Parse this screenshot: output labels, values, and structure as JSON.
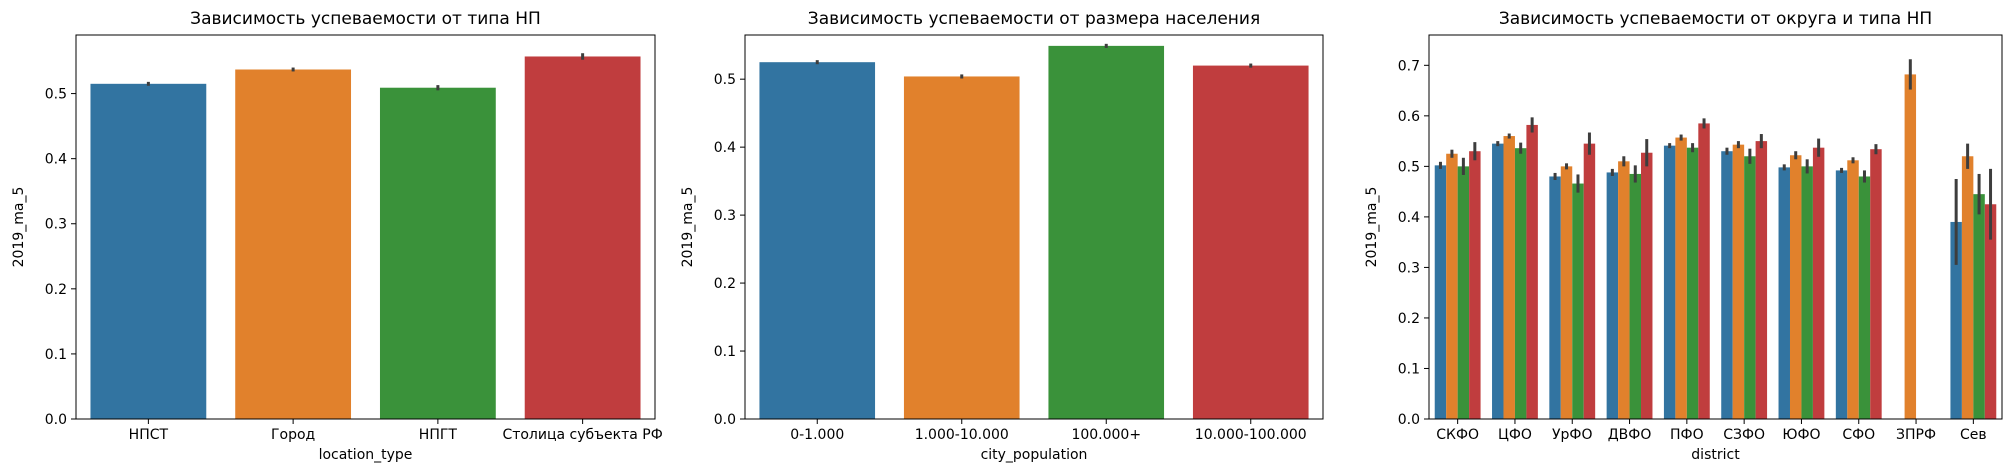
{
  "chart_data": [
    {
      "type": "bar",
      "title": "Зависимость успеваемости от типа НП",
      "xlabel": "location_type",
      "ylabel": "2019_ma_5",
      "ylim": [
        0,
        0.59
      ],
      "yticks": [
        "0.0",
        "0.1",
        "0.2",
        "0.3",
        "0.4",
        "0.5"
      ],
      "grid": false,
      "categories": [
        "НПСТ",
        "Город",
        "НПГТ",
        "Столица субъекта РФ"
      ],
      "values": [
        0.515,
        0.537,
        0.509,
        0.557
      ],
      "errors": [
        0.003,
        0.003,
        0.004,
        0.005
      ],
      "colors": [
        "#3274a1",
        "#e1812c",
        "#3a923a",
        "#c03d3e"
      ]
    },
    {
      "type": "bar",
      "title": "Зависимость успеваемости от размера населения",
      "xlabel": "city_population",
      "ylabel": "2019_ma_5",
      "ylim": [
        0,
        0.565
      ],
      "yticks": [
        "0.0",
        "0.1",
        "0.2",
        "0.3",
        "0.4",
        "0.5"
      ],
      "grid": false,
      "categories": [
        "0-1.000",
        "1.000-10.000",
        "100.000+",
        "10.000-100.000"
      ],
      "values": [
        0.525,
        0.504,
        0.549,
        0.52
      ],
      "errors": [
        0.003,
        0.003,
        0.003,
        0.003
      ],
      "colors": [
        "#3274a1",
        "#e1812c",
        "#3a923a",
        "#c03d3e"
      ]
    },
    {
      "type": "bar",
      "title": "Зависимость успеваемости от округа и типа НП",
      "xlabel": "district",
      "ylabel": "2019_ma_5",
      "ylim": [
        0,
        0.76
      ],
      "yticks": [
        "0.0",
        "0.1",
        "0.2",
        "0.3",
        "0.4",
        "0.5",
        "0.6",
        "0.7"
      ],
      "grid": false,
      "categories": [
        "СКФО",
        "ЦФО",
        "УрФО",
        "ДВФО",
        "ПФО",
        "СЗФО",
        "ЮФО",
        "СФО",
        "ЗПРФ",
        "Сев"
      ],
      "colors": [
        "#3274a1",
        "#e1812c",
        "#3a923a",
        "#c03d3e"
      ],
      "series": [
        {
          "values": [
            0.502,
            0.545,
            0.48,
            0.488,
            0.541,
            0.53,
            0.498,
            0.492,
            null,
            0.39
          ],
          "errors": [
            0.007,
            0.005,
            0.007,
            0.007,
            0.005,
            0.007,
            0.006,
            0.005,
            null,
            0.085
          ]
        },
        {
          "values": [
            0.525,
            0.56,
            0.5,
            0.51,
            0.557,
            0.543,
            0.522,
            0.512,
            0.682,
            0.52
          ],
          "errors": [
            0.008,
            0.005,
            0.006,
            0.01,
            0.006,
            0.007,
            0.008,
            0.006,
            0.03,
            0.025
          ]
        },
        {
          "values": [
            0.5,
            0.536,
            0.466,
            0.485,
            0.537,
            0.52,
            0.5,
            0.48,
            null,
            0.445
          ],
          "errors": [
            0.017,
            0.011,
            0.018,
            0.017,
            0.009,
            0.015,
            0.014,
            0.012,
            null,
            0.04
          ]
        },
        {
          "values": [
            0.53,
            0.582,
            0.545,
            0.527,
            0.585,
            0.55,
            0.537,
            0.534,
            null,
            0.425
          ],
          "errors": [
            0.018,
            0.015,
            0.022,
            0.027,
            0.01,
            0.014,
            0.018,
            0.01,
            null,
            0.07
          ]
        }
      ]
    }
  ]
}
